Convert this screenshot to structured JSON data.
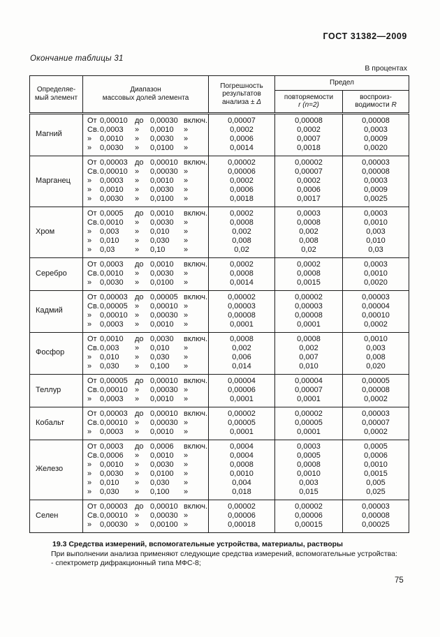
{
  "page": {
    "doc_number": "ГОСТ 31382—2009",
    "table_caption": "Окончание таблицы 31",
    "units_note": "В процентах",
    "page_number": "75"
  },
  "table": {
    "headers": {
      "element": "Определяе-\nмый элемент",
      "range": "Диапазон\nмассовых долей элемента",
      "error_line1": "Погрешность",
      "error_line2": "результатов",
      "error_line3": "анализа ± ",
      "error_symbol": "Δ",
      "limit": "Предел",
      "repeat_line1": "повторяемости",
      "repeat_line2": "r (n=2)",
      "reprod_line1": "воспроиз-",
      "reprod_line2": "водимости",
      "reprod_symbol": "R"
    },
    "groups": [
      {
        "element": "Магний",
        "rows": [
          {
            "range": [
              "От",
              "0,00010",
              "до",
              "0,00030",
              "включ."
            ],
            "error": "0,00007",
            "r": "0,00008",
            "R": "0,00008"
          },
          {
            "range": [
              "Св.",
              "0,0003",
              "»",
              "0,0010",
              "»"
            ],
            "error": "0,0002",
            "r": "0,0002",
            "R": "0,0003"
          },
          {
            "range": [
              "»",
              "0,0010",
              "»",
              "0,0030",
              "»"
            ],
            "error": "0,0006",
            "r": "0,0007",
            "R": "0,0009"
          },
          {
            "range": [
              "»",
              "0,0030",
              "»",
              "0,0100",
              "»"
            ],
            "error": "0,0014",
            "r": "0,0018",
            "R": "0,0020"
          }
        ]
      },
      {
        "element": "Марганец",
        "rows": [
          {
            "range": [
              "От",
              "0,00003",
              "до",
              "0,00010",
              "включ."
            ],
            "error": "0,00002",
            "r": "0,00002",
            "R": "0,00003"
          },
          {
            "range": [
              "Св.",
              "0,00010",
              "»",
              "0,00030",
              "»"
            ],
            "error": "0,00006",
            "r": "0,00007",
            "R": "0,00008"
          },
          {
            "range": [
              "»",
              "0,0003",
              "»",
              "0,0010",
              "»"
            ],
            "error": "0,0002",
            "r": "0,0002",
            "R": "0,0003"
          },
          {
            "range": [
              "»",
              "0,0010",
              "»",
              "0,0030",
              "»"
            ],
            "error": "0,0006",
            "r": "0,0006",
            "R": "0,0009"
          },
          {
            "range": [
              "»",
              "0,0030",
              "»",
              "0,0100",
              "»"
            ],
            "error": "0,0018",
            "r": "0,0017",
            "R": "0,0025"
          }
        ]
      },
      {
        "element": "Хром",
        "rows": [
          {
            "range": [
              "От",
              "0,0005",
              "до",
              "0,0010",
              "включ."
            ],
            "error": "0,0002",
            "r": "0,0003",
            "R": "0,0003"
          },
          {
            "range": [
              "Св.",
              "0,0010",
              "»",
              "0,0030",
              "»"
            ],
            "error": "0,0008",
            "r": "0,0008",
            "R": "0,0010"
          },
          {
            "range": [
              "»",
              "0,003",
              "»",
              "0,010",
              "»"
            ],
            "error": "0,002",
            "r": "0,002",
            "R": "0,003"
          },
          {
            "range": [
              "»",
              "0,010",
              "»",
              "0,030",
              "»"
            ],
            "error": "0,008",
            "r": "0,008",
            "R": "0,010"
          },
          {
            "range": [
              "»",
              "0,03",
              "»",
              "0,10",
              "»"
            ],
            "error": "0,02",
            "r": "0,02",
            "R": "0,03"
          }
        ]
      },
      {
        "element": "Серебро",
        "rows": [
          {
            "range": [
              "От",
              "0,0003",
              "до",
              "0,0010",
              "включ."
            ],
            "error": "0,0002",
            "r": "0,0002",
            "R": "0,0003"
          },
          {
            "range": [
              "Св.",
              "0,0010",
              "»",
              "0,0030",
              "»"
            ],
            "error": "0,0008",
            "r": "0,0008",
            "R": "0,0010"
          },
          {
            "range": [
              "»",
              "0,0030",
              "»",
              "0,0100",
              "»"
            ],
            "error": "0,0014",
            "r": "0,0015",
            "R": "0,0020"
          }
        ]
      },
      {
        "element": "Кадмий",
        "rows": [
          {
            "range": [
              "От",
              "0,00003",
              "до",
              "0,00005",
              "включ."
            ],
            "error": "0,00002",
            "r": "0,00002",
            "R": "0,00003"
          },
          {
            "range": [
              "Св.",
              "0,00005",
              "»",
              "0,00010",
              "»"
            ],
            "error": "0,00003",
            "r": "0,00003",
            "R": "0,00004"
          },
          {
            "range": [
              "»",
              "0,00010",
              "»",
              "0,00030",
              "»"
            ],
            "error": "0,00008",
            "r": "0,00008",
            "R": "0,00010"
          },
          {
            "range": [
              "»",
              "0,0003",
              "»",
              "0,0010",
              "»"
            ],
            "error": "0,0001",
            "r": "0,0001",
            "R": "0,0002"
          }
        ]
      },
      {
        "element": "Фосфор",
        "rows": [
          {
            "range": [
              "От",
              "0,0010",
              "до",
              "0,0030",
              "включ."
            ],
            "error": "0,0008",
            "r": "0,0008",
            "R": "0,0010"
          },
          {
            "range": [
              "Св.",
              "0,003",
              "»",
              "0,010",
              "»"
            ],
            "error": "0,002",
            "r": "0,002",
            "R": "0,003"
          },
          {
            "range": [
              "»",
              "0,010",
              "»",
              "0,030",
              "»"
            ],
            "error": "0,006",
            "r": "0,007",
            "R": "0,008"
          },
          {
            "range": [
              "»",
              "0,030",
              "»",
              "0,100",
              "»"
            ],
            "error": "0,014",
            "r": "0,010",
            "R": "0,020"
          }
        ]
      },
      {
        "element": "Теллур",
        "rows": [
          {
            "range": [
              "От",
              "0,00005",
              "до",
              "0,00010",
              "включ."
            ],
            "error": "0,00004",
            "r": "0,00004",
            "R": "0,00005"
          },
          {
            "range": [
              "Св.",
              "0,00010",
              "»",
              "0,00030",
              "»"
            ],
            "error": "0,00006",
            "r": "0,00007",
            "R": "0,00008"
          },
          {
            "range": [
              "»",
              "0,0003",
              "»",
              "0,0010",
              "»"
            ],
            "error": "0,0001",
            "r": "0,0001",
            "R": "0,0002"
          }
        ]
      },
      {
        "element": "Кобальт",
        "rows": [
          {
            "range": [
              "От",
              "0,00003",
              "до",
              "0,00010",
              "включ."
            ],
            "error": "0,00002",
            "r": "0,00002",
            "R": "0,00003"
          },
          {
            "range": [
              "Св.",
              "0,00010",
              "»",
              "0,00030",
              "»"
            ],
            "error": "0,00005",
            "r": "0,00005",
            "R": "0,00007"
          },
          {
            "range": [
              "»",
              "0,0003",
              "»",
              "0,0010",
              "»"
            ],
            "error": "0,0001",
            "r": "0,0001",
            "R": "0,0002"
          }
        ]
      },
      {
        "element": "Железо",
        "rows": [
          {
            "range": [
              "От",
              "0,0003",
              "до",
              "0,0006",
              "включ."
            ],
            "error": "0,0004",
            "r": "0,0003",
            "R": "0,0005"
          },
          {
            "range": [
              "Св.",
              "0,0006",
              "»",
              "0,0010",
              "»"
            ],
            "error": "0,0004",
            "r": "0,0005",
            "R": "0,0006"
          },
          {
            "range": [
              "»",
              "0,0010",
              "»",
              "0,0030",
              "»"
            ],
            "error": "0,0008",
            "r": "0,0008",
            "R": "0,0010"
          },
          {
            "range": [
              "»",
              "0,0030",
              "»",
              "0,0100",
              "»"
            ],
            "error": "0,0010",
            "r": "0,0010",
            "R": "0,0015"
          },
          {
            "range": [
              "»",
              "0,010",
              "»",
              "0,030",
              "»"
            ],
            "error": "0,004",
            "r": "0,003",
            "R": "0,005"
          },
          {
            "range": [
              "»",
              "0,030",
              "»",
              "0,100",
              "»"
            ],
            "error": "0,018",
            "r": "0,015",
            "R": "0,025"
          }
        ]
      },
      {
        "element": "Селен",
        "rows": [
          {
            "range": [
              "От",
              "0,00003",
              "до",
              "0,00010",
              "включ."
            ],
            "error": "0,00002",
            "r": "0,00002",
            "R": "0,00003"
          },
          {
            "range": [
              "Св.",
              "0,00010",
              "»",
              "0,00030",
              "»"
            ],
            "error": "0,00006",
            "r": "0,00006",
            "R": "0,00008"
          },
          {
            "range": [
              "»",
              "0,00030",
              "»",
              "0,00100",
              "»"
            ],
            "error": "0,00018",
            "r": "0,00015",
            "R": "0,00025"
          }
        ]
      }
    ]
  },
  "section": {
    "heading": "19.3 Средства измерений, вспомогательные устройства, материалы, растворы",
    "paragraph": "При выполнении анализа применяют следующие средства измерений, вспомогательные устройства:",
    "list_item": "- спектрометр дифракционный типа МФС-8;"
  }
}
